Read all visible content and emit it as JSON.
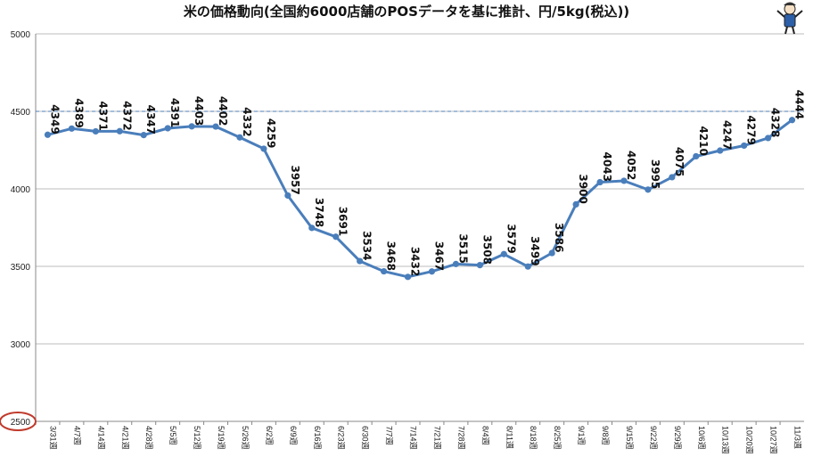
{
  "chart_data": {
    "type": "line",
    "title": "米の価格動向(全国約6000店舗のPOSデータを基に推計、円/5kg(税込))",
    "xlabel": "",
    "ylabel": "",
    "ylim": [
      2500,
      5000
    ],
    "yticks": [
      2500,
      3000,
      3500,
      4000,
      4500,
      5000
    ],
    "grid": true,
    "legend": "none",
    "highlighted_tick": 2500,
    "reference_line": 4500,
    "colors": {
      "line": "#4a7ebb",
      "grid": "#bdbdbd",
      "highlight_circle": "#c0392b",
      "reference_line": "#4a7ebb"
    },
    "categories": [
      "3/31週",
      "4/7週",
      "4/14週",
      "4/21週",
      "4/28週",
      "5/5週",
      "5/12週",
      "5/19週",
      "5/26週",
      "6/2週",
      "6/9週",
      "6/16週",
      "6/23週",
      "6/30週",
      "7/7週",
      "7/14週",
      "7/21週",
      "7/28週",
      "8/4週",
      "8/11週",
      "8/18週",
      "8/25週",
      "9/1週",
      "9/8週",
      "9/15週",
      "9/22週",
      "9/29週",
      "10/6週",
      "10/13週",
      "10/20週",
      "10/27週",
      "11/3週"
    ],
    "series": [
      {
        "values": [
          4349,
          4389,
          4371,
          4372,
          4347,
          4391,
          4403,
          4402,
          4332,
          4259,
          3957,
          3748,
          3691,
          3534,
          3468,
          3432,
          3467,
          3515,
          3508,
          3579,
          3499,
          3586,
          3900,
          4043,
          4052,
          3995,
          4075,
          4210,
          4247,
          4279,
          4328,
          4444
        ]
      }
    ]
  },
  "mascot_icon": "cartoon-character-icon"
}
